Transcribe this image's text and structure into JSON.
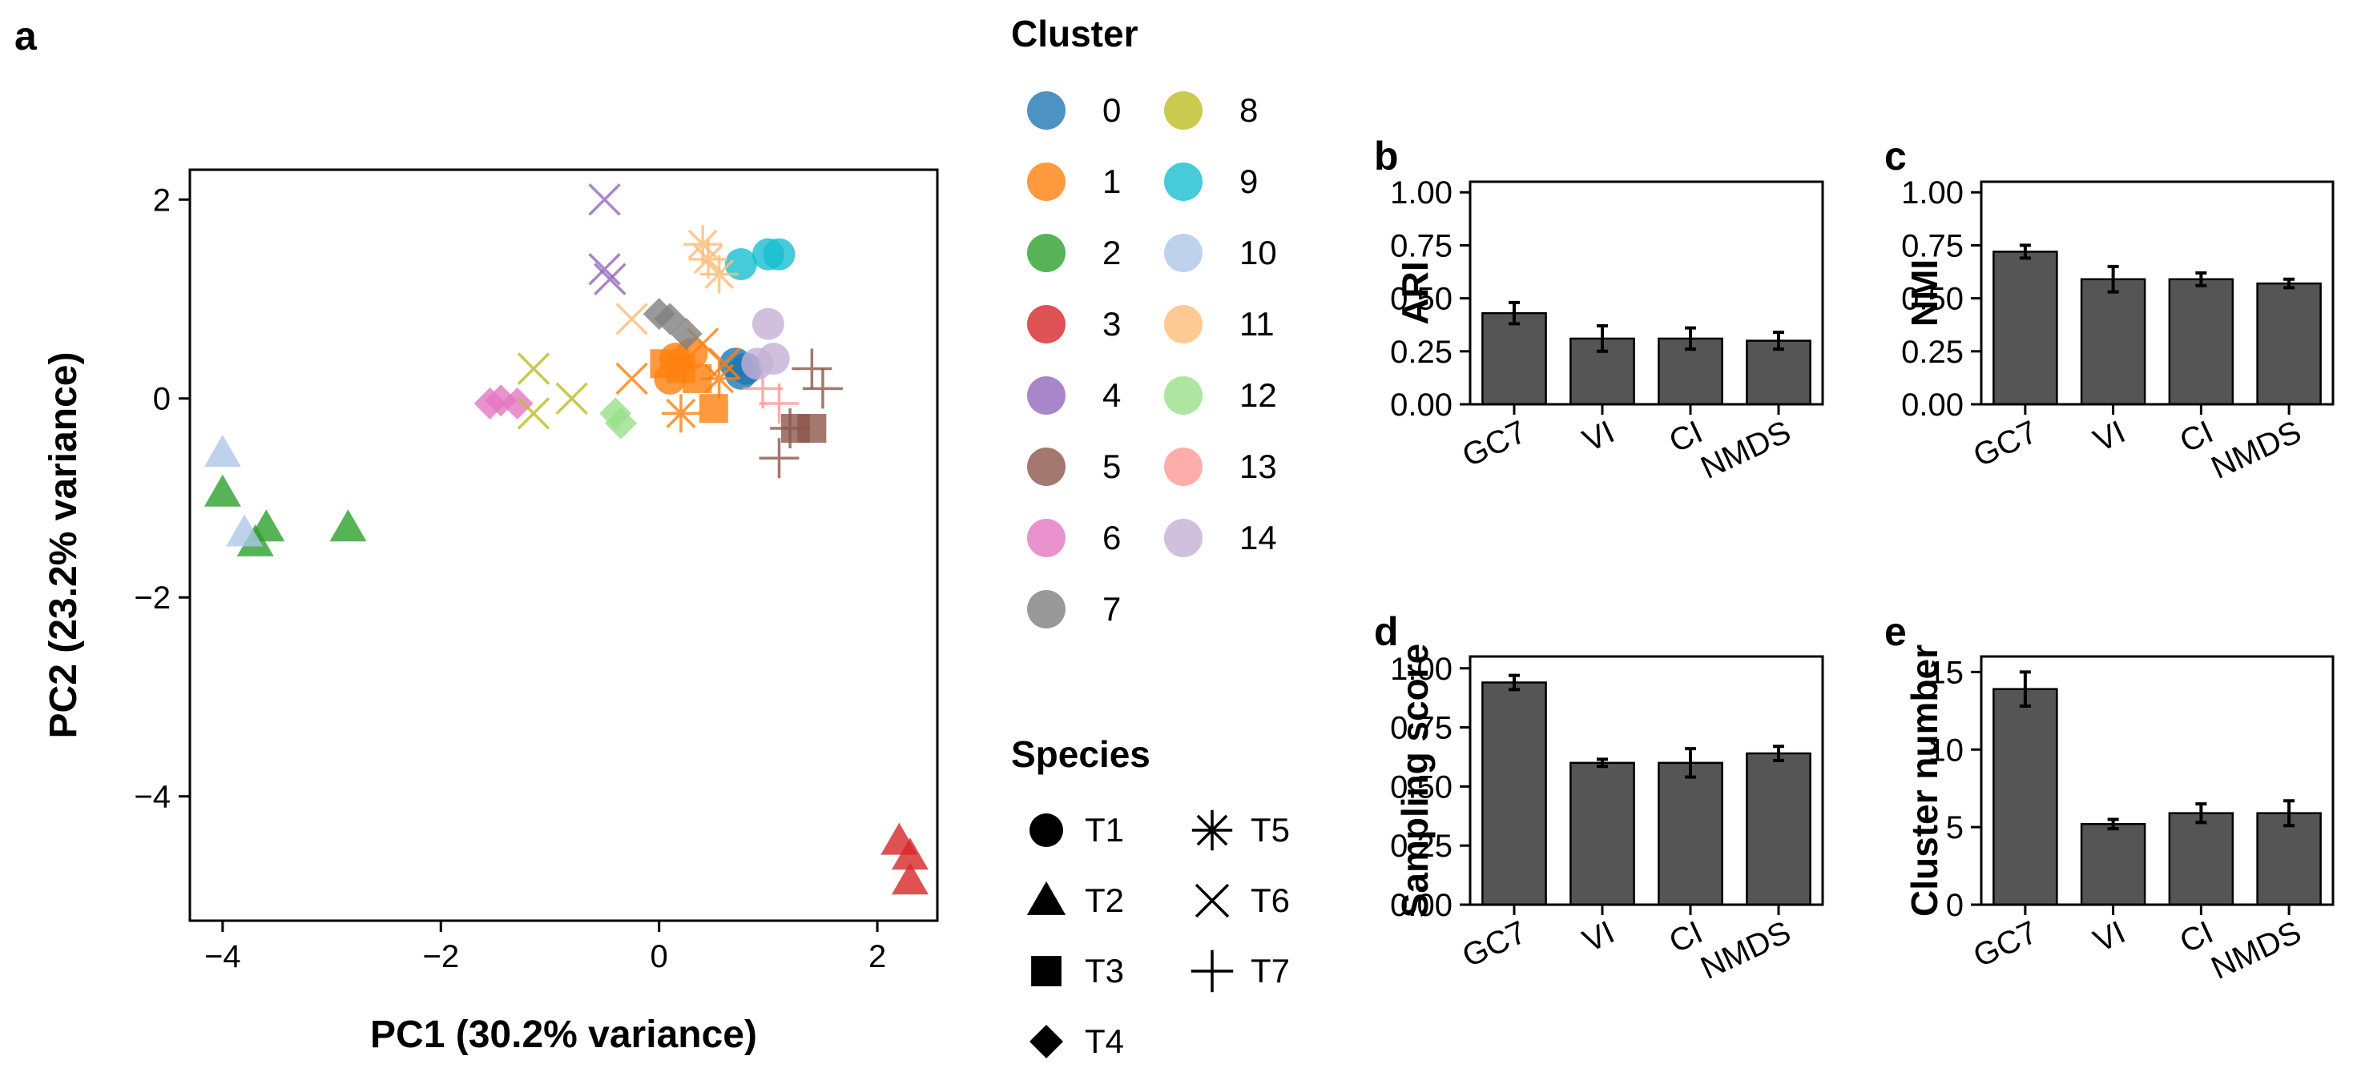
{
  "panel_labels": {
    "a": "a",
    "b": "b",
    "c": "c",
    "d": "d",
    "e": "e"
  },
  "legend": {
    "cluster_title": "Cluster",
    "species_title": "Species",
    "clusters": [
      {
        "label": "0",
        "color": "#1f77b4"
      },
      {
        "label": "1",
        "color": "#ff7f0e"
      },
      {
        "label": "2",
        "color": "#2ca02c"
      },
      {
        "label": "3",
        "color": "#d62728"
      },
      {
        "label": "4",
        "color": "#9467bd"
      },
      {
        "label": "5",
        "color": "#8c564b"
      },
      {
        "label": "6",
        "color": "#e377c2"
      },
      {
        "label": "7",
        "color": "#7f7f7f"
      },
      {
        "label": "8",
        "color": "#bcbd22"
      },
      {
        "label": "9",
        "color": "#17becf"
      },
      {
        "label": "10",
        "color": "#aec7e8"
      },
      {
        "label": "11",
        "color": "#ffbb78"
      },
      {
        "label": "12",
        "color": "#98df8a"
      },
      {
        "label": "13",
        "color": "#ff9896"
      },
      {
        "label": "14",
        "color": "#c5b0d5"
      }
    ],
    "species": [
      {
        "label": "T1",
        "shape": "circle"
      },
      {
        "label": "T2",
        "shape": "triangle"
      },
      {
        "label": "T3",
        "shape": "square"
      },
      {
        "label": "T4",
        "shape": "diamond"
      },
      {
        "label": "T5",
        "shape": "asterisk"
      },
      {
        "label": "T6",
        "shape": "cross"
      },
      {
        "label": "T7",
        "shape": "plus"
      }
    ]
  },
  "chart_data": [
    {
      "id": "a",
      "type": "scatter",
      "xlabel": "PC1 (30.2% variance)",
      "ylabel": "PC2 (23.2% variance)",
      "xlim": [
        -4.3,
        2.55
      ],
      "ylim": [
        -5.25,
        2.3
      ],
      "xticks": [
        -4,
        -2,
        0,
        2
      ],
      "yticks": [
        2,
        0,
        -2,
        -4
      ],
      "points": [
        {
          "x": 0.8,
          "y": 0.3,
          "cluster": 0,
          "species": "T1"
        },
        {
          "x": 0.7,
          "y": 0.35,
          "cluster": 0,
          "species": "T1"
        },
        {
          "x": 0.75,
          "y": 0.25,
          "cluster": 0,
          "species": "T1"
        },
        {
          "x": 0.05,
          "y": 0.35,
          "cluster": 1,
          "species": "T3"
        },
        {
          "x": 0.2,
          "y": 0.3,
          "cluster": 1,
          "species": "T3"
        },
        {
          "x": 0.35,
          "y": 0.2,
          "cluster": 1,
          "species": "T3"
        },
        {
          "x": 0.5,
          "y": -0.1,
          "cluster": 1,
          "species": "T3"
        },
        {
          "x": 0.15,
          "y": 0.4,
          "cluster": 1,
          "species": "T1"
        },
        {
          "x": 0.3,
          "y": 0.45,
          "cluster": 1,
          "species": "T1"
        },
        {
          "x": 0.1,
          "y": 0.2,
          "cluster": 1,
          "species": "T1"
        },
        {
          "x": 0.4,
          "y": 0.55,
          "cluster": 1,
          "species": "T6"
        },
        {
          "x": -0.25,
          "y": 0.2,
          "cluster": 1,
          "species": "T6"
        },
        {
          "x": 0.6,
          "y": 0.35,
          "cluster": 1,
          "species": "T6"
        },
        {
          "x": 0.2,
          "y": -0.15,
          "cluster": 1,
          "species": "T5"
        },
        {
          "x": 0.55,
          "y": 0.2,
          "cluster": 1,
          "species": "T5"
        },
        {
          "x": -4.0,
          "y": -0.95,
          "cluster": 2,
          "species": "T2"
        },
        {
          "x": -3.6,
          "y": -1.3,
          "cluster": 2,
          "species": "T2"
        },
        {
          "x": -3.7,
          "y": -1.45,
          "cluster": 2,
          "species": "T2"
        },
        {
          "x": -2.85,
          "y": -1.3,
          "cluster": 2,
          "species": "T2"
        },
        {
          "x": 2.2,
          "y": -4.45,
          "cluster": 3,
          "species": "T2"
        },
        {
          "x": 2.3,
          "y": -4.6,
          "cluster": 3,
          "species": "T2"
        },
        {
          "x": 2.3,
          "y": -4.85,
          "cluster": 3,
          "species": "T2"
        },
        {
          "x": -0.5,
          "y": 2.0,
          "cluster": 4,
          "species": "T6"
        },
        {
          "x": -0.5,
          "y": 1.3,
          "cluster": 4,
          "species": "T6"
        },
        {
          "x": -0.45,
          "y": 1.2,
          "cluster": 4,
          "species": "T6"
        },
        {
          "x": 1.4,
          "y": -0.3,
          "cluster": 5,
          "species": "T3"
        },
        {
          "x": 1.25,
          "y": -0.3,
          "cluster": 5,
          "species": "T3"
        },
        {
          "x": 1.4,
          "y": 0.3,
          "cluster": 5,
          "species": "T7"
        },
        {
          "x": 1.2,
          "y": -0.3,
          "cluster": 5,
          "species": "T7"
        },
        {
          "x": 1.1,
          "y": -0.6,
          "cluster": 5,
          "species": "T7"
        },
        {
          "x": 1.5,
          "y": 0.1,
          "cluster": 5,
          "species": "T7"
        },
        {
          "x": -1.55,
          "y": -0.05,
          "cluster": 6,
          "species": "T4"
        },
        {
          "x": -1.45,
          "y": -0.02,
          "cluster": 6,
          "species": "T4"
        },
        {
          "x": -1.3,
          "y": -0.05,
          "cluster": 6,
          "species": "T4"
        },
        {
          "x": 0.0,
          "y": 0.85,
          "cluster": 7,
          "species": "T4"
        },
        {
          "x": 0.1,
          "y": 0.8,
          "cluster": 7,
          "species": "T4"
        },
        {
          "x": 0.25,
          "y": 0.65,
          "cluster": 7,
          "species": "T4"
        },
        {
          "x": -1.15,
          "y": 0.3,
          "cluster": 8,
          "species": "T6"
        },
        {
          "x": -1.15,
          "y": -0.15,
          "cluster": 8,
          "species": "T6"
        },
        {
          "x": -0.8,
          "y": 0.0,
          "cluster": 8,
          "species": "T6"
        },
        {
          "x": 0.75,
          "y": 1.35,
          "cluster": 9,
          "species": "T1"
        },
        {
          "x": 1.0,
          "y": 1.45,
          "cluster": 9,
          "species": "T1"
        },
        {
          "x": 1.1,
          "y": 1.45,
          "cluster": 9,
          "species": "T1"
        },
        {
          "x": -4.0,
          "y": -0.55,
          "cluster": 10,
          "species": "T2"
        },
        {
          "x": -3.8,
          "y": -1.35,
          "cluster": 10,
          "species": "T2"
        },
        {
          "x": 0.4,
          "y": 1.55,
          "cluster": 11,
          "species": "T5"
        },
        {
          "x": 0.45,
          "y": 1.4,
          "cluster": 11,
          "species": "T5"
        },
        {
          "x": 0.55,
          "y": 1.25,
          "cluster": 11,
          "species": "T5"
        },
        {
          "x": -0.25,
          "y": 0.8,
          "cluster": 11,
          "species": "T6"
        },
        {
          "x": -0.35,
          "y": -0.25,
          "cluster": 12,
          "species": "T4"
        },
        {
          "x": -0.4,
          "y": -0.15,
          "cluster": 12,
          "species": "T4"
        },
        {
          "x": 1.1,
          "y": -0.05,
          "cluster": 13,
          "species": "T7"
        },
        {
          "x": 0.95,
          "y": 0.1,
          "cluster": 13,
          "species": "T7"
        },
        {
          "x": 1.0,
          "y": 0.75,
          "cluster": 14,
          "species": "T1"
        },
        {
          "x": 0.9,
          "y": 0.35,
          "cluster": 14,
          "species": "T1"
        },
        {
          "x": 1.05,
          "y": 0.4,
          "cluster": 14,
          "species": "T1"
        }
      ]
    },
    {
      "id": "b",
      "type": "bar",
      "ylabel": "ARI",
      "categories": [
        "GC7",
        "VI",
        "CI",
        "NMDS"
      ],
      "values": [
        0.43,
        0.31,
        0.31,
        0.3
      ],
      "errors": [
        0.05,
        0.06,
        0.05,
        0.04
      ],
      "ylim": [
        0,
        1.05
      ],
      "yticks": [
        0,
        0.25,
        0.5,
        0.75,
        1.0
      ],
      "ytick_labels": [
        "0.00",
        "0.25",
        "0.50",
        "0.75",
        "1.00"
      ]
    },
    {
      "id": "c",
      "type": "bar",
      "ylabel": "NMI",
      "categories": [
        "GC7",
        "VI",
        "CI",
        "NMDS"
      ],
      "values": [
        0.72,
        0.59,
        0.59,
        0.57
      ],
      "errors": [
        0.03,
        0.06,
        0.03,
        0.02
      ],
      "ylim": [
        0,
        1.05
      ],
      "yticks": [
        0,
        0.25,
        0.5,
        0.75,
        1.0
      ],
      "ytick_labels": [
        "0.00",
        "0.25",
        "0.50",
        "0.75",
        "1.00"
      ]
    },
    {
      "id": "d",
      "type": "bar",
      "ylabel": "Sampling score",
      "categories": [
        "GC7",
        "VI",
        "CI",
        "NMDS"
      ],
      "values": [
        0.94,
        0.6,
        0.6,
        0.64
      ],
      "errors": [
        0.03,
        0.015,
        0.06,
        0.03
      ],
      "ylim": [
        0,
        1.05
      ],
      "yticks": [
        0,
        0.25,
        0.5,
        0.75,
        1.0
      ],
      "ytick_labels": [
        "0.00",
        "0.25",
        "0.50",
        "0.75",
        "1.00"
      ]
    },
    {
      "id": "e",
      "type": "bar",
      "ylabel": "Cluster number",
      "categories": [
        "GC7",
        "VI",
        "CI",
        "NMDS"
      ],
      "values": [
        13.9,
        5.2,
        5.9,
        5.9
      ],
      "errors": [
        1.1,
        0.3,
        0.6,
        0.8
      ],
      "ylim": [
        0,
        16
      ],
      "yticks": [
        0,
        5,
        10,
        15
      ],
      "ytick_labels": [
        "0",
        "5",
        "10",
        "15"
      ]
    }
  ]
}
